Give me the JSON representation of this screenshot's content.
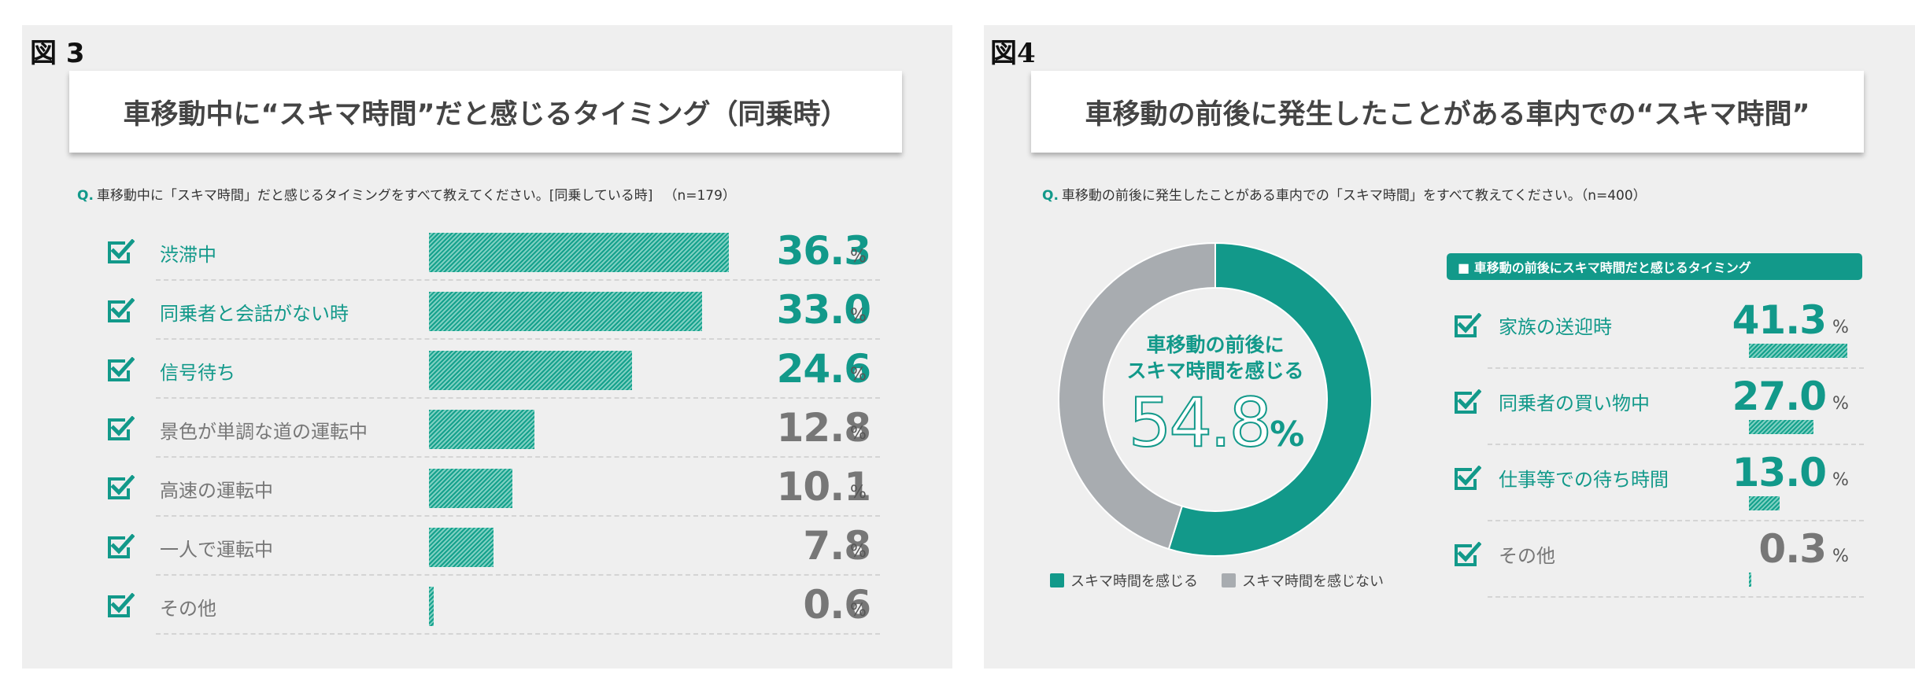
{
  "figure3": {
    "label": "図 3",
    "title": "車移動中に“スキマ時間”だと感じるタイミング（同乗時）",
    "question": "車移動中に「スキマ時間」だと感じるタイミングをすべて教えてください。[同乗している時]",
    "question_mark": "Q.",
    "n": "（n=179）",
    "unit": "%"
  },
  "figure4": {
    "label": "図4",
    "title": "車移動の前後に発生したことがある車内での“スキマ時間”",
    "question": "車移動の前後に発生したことがある車内での「スキマ時間」をすべて教えてください。",
    "question_mark": "Q.",
    "n": "（n=400）",
    "donut_caption_1": "車移動の前後に",
    "donut_caption_2": "スキマ時間を感じる",
    "donut_value": "54.8",
    "donut_unit": "%",
    "legend_feel": "スキマ時間を感じる",
    "legend_not": "スキマ時間を感じない",
    "sub_header": "■ 車移動の前後にスキマ時間だと感じるタイミング",
    "unit": "%"
  },
  "colors": {
    "teal": "#12998a",
    "gray": "#a8acb0",
    "value_gray": "#777777"
  },
  "icons": {
    "checkbox": "checkbox-checked-icon"
  },
  "chart_data": [
    {
      "type": "bar",
      "orientation": "horizontal",
      "title": "車移動中に“スキマ時間”だと感じるタイミング（同乗時）",
      "categories": [
        "渋滞中",
        "同乗者と会話がない時",
        "信号待ち",
        "景色が単調な道の運転中",
        "高速の運転中",
        "一人で運転中",
        "その他"
      ],
      "values": [
        36.3,
        33.0,
        24.6,
        12.8,
        10.1,
        7.8,
        0.6
      ],
      "labels": [
        "36.3",
        "33.0",
        "24.6",
        "12.8",
        "10.1",
        "7.8",
        "0.6"
      ],
      "unit": "%",
      "highlighted_top": 3,
      "xlim": [
        0,
        40
      ]
    },
    {
      "type": "pie",
      "donut": true,
      "categories": [
        "スキマ時間を感じる",
        "スキマ時間を感じない"
      ],
      "values": [
        54.8,
        45.2
      ],
      "legend": "bottom"
    },
    {
      "type": "bar",
      "orientation": "horizontal",
      "title": "車移動の前後にスキマ時間だと感じるタイミング",
      "categories": [
        "家族の送迎時",
        "同乗者の買い物中",
        "仕事等での待ち時間",
        "その他"
      ],
      "values": [
        41.3,
        27.0,
        13.0,
        0.3
      ],
      "labels": [
        "41.3",
        "27.0",
        "13.0",
        "0.3"
      ],
      "unit": "%",
      "highlighted_top": 3,
      "xlim": [
        0,
        45
      ]
    }
  ]
}
